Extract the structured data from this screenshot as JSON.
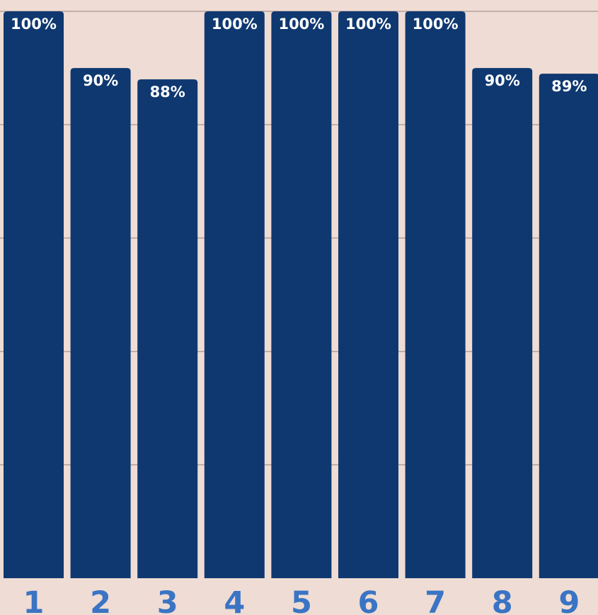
{
  "chart_data": {
    "type": "bar",
    "categories": [
      "1",
      "2",
      "3",
      "4",
      "5",
      "6",
      "7",
      "8",
      "9"
    ],
    "values": [
      100,
      90,
      88,
      100,
      100,
      100,
      100,
      90,
      89
    ],
    "value_labels": [
      "100%",
      "90%",
      "88%",
      "100%",
      "100%",
      "100%",
      "100%",
      "90%",
      "89%"
    ],
    "title": "",
    "xlabel": "",
    "ylabel": "",
    "ylim": [
      0,
      100
    ],
    "grid": true
  },
  "colors": {
    "background": "#efdcd4",
    "bar": "#0f3870",
    "bar_label": "#ffffff",
    "tick_label": "#3a74c4",
    "gridline": "#b3a09b"
  }
}
